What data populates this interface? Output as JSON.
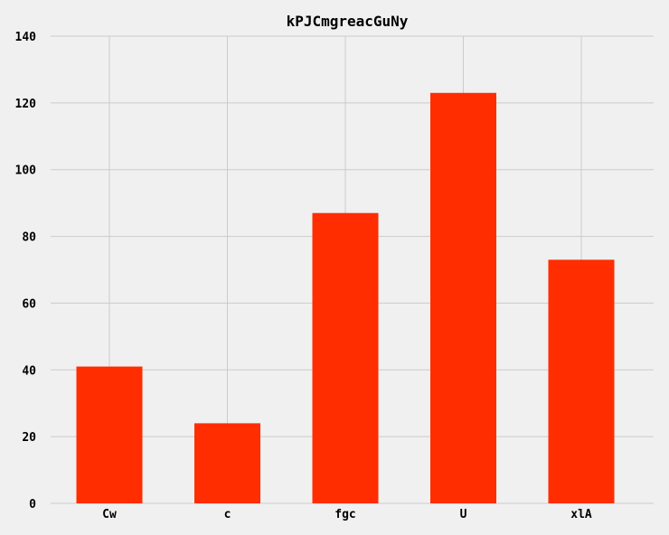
{
  "chart_data": {
    "type": "bar",
    "title": "kPJCmgreacGuNy",
    "xlabel": "",
    "ylabel": "",
    "categories": [
      "Cw",
      "c",
      "fgc",
      "U",
      "xlA"
    ],
    "values": [
      41,
      24,
      87,
      123,
      73
    ],
    "ylim": [
      0,
      140
    ],
    "yticks": [
      0,
      20,
      40,
      60,
      80,
      100,
      120,
      140
    ],
    "grid": true,
    "bar_color": "#ff2d00",
    "background_color": "#f0f0f0"
  }
}
